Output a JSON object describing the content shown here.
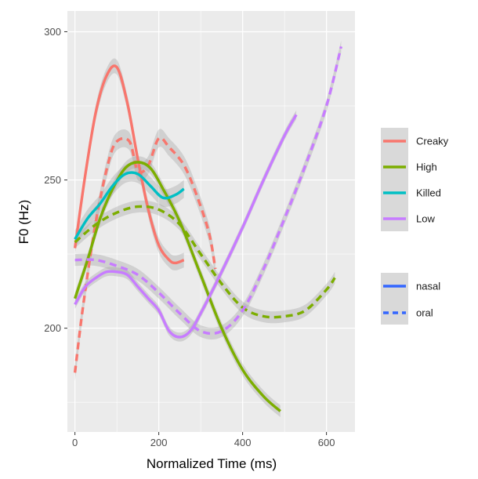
{
  "chart_data": {
    "type": "line",
    "xlabel": "Normalized Time (ms)",
    "ylabel": "F0 (Hz)",
    "xlim": [
      -18,
      668
    ],
    "ylim": [
      165,
      307
    ],
    "x_ticks": [
      0,
      200,
      400,
      600
    ],
    "y_ticks": [
      200,
      250,
      300
    ],
    "grid": true,
    "background": "#ebebeb",
    "legend_position": "right",
    "color_legend": {
      "entries": [
        {
          "label": "Creaky",
          "color": "#f8766d"
        },
        {
          "label": "High",
          "color": "#7cae00"
        },
        {
          "label": "Killed",
          "color": "#00bfc4"
        },
        {
          "label": "Low",
          "color": "#c77cff"
        }
      ]
    },
    "linetype_legend": {
      "entries": [
        {
          "label": "nasal",
          "dash": "solid",
          "color": "#3366ff"
        },
        {
          "label": "oral",
          "dash": "dashed",
          "color": "#3366ff"
        }
      ]
    },
    "series": [
      {
        "group": "Creaky",
        "linetype": "nasal",
        "color": "#f8766d",
        "band": 2.5,
        "x": [
          0,
          25,
          50,
          75,
          100,
          125,
          150,
          175,
          200,
          225,
          240,
          260
        ],
        "y": [
          227,
          252,
          273,
          285,
          288,
          276,
          257,
          240,
          228,
          223,
          222,
          223
        ]
      },
      {
        "group": "Creaky",
        "linetype": "oral",
        "color": "#f8766d",
        "band": 3,
        "x": [
          0,
          20,
          50,
          80,
          100,
          130,
          150,
          175,
          200,
          225,
          260,
          290,
          320,
          335
        ],
        "y": [
          185,
          208,
          236,
          256,
          263,
          263,
          253,
          255,
          264,
          261,
          255,
          245,
          232,
          220
        ]
      },
      {
        "group": "High",
        "linetype": "nasal",
        "color": "#7cae00",
        "band": 2,
        "x": [
          0,
          30,
          60,
          90,
          120,
          150,
          180,
          210,
          250,
          300,
          350,
          400,
          450,
          490
        ],
        "y": [
          210,
          223,
          237,
          247,
          254,
          256,
          254,
          247,
          236,
          218,
          200,
          186,
          177,
          172
        ]
      },
      {
        "group": "High",
        "linetype": "oral",
        "color": "#7cae00",
        "band": 2,
        "x": [
          0,
          50,
          100,
          150,
          200,
          250,
          300,
          350,
          400,
          450,
          500,
          550,
          600,
          620
        ],
        "y": [
          229,
          235,
          239,
          241,
          240,
          235,
          225,
          215,
          207,
          204,
          204,
          206,
          213,
          217
        ]
      },
      {
        "group": "Killed",
        "linetype": "nasal",
        "color": "#00bfc4",
        "band": 3,
        "x": [
          0,
          30,
          60,
          90,
          120,
          150,
          180,
          210,
          240,
          260
        ],
        "y": [
          230,
          237,
          242,
          248,
          252,
          252,
          248,
          244,
          245,
          247
        ]
      },
      {
        "group": "Low",
        "linetype": "nasal",
        "color": "#c77cff",
        "band": 1.5,
        "x": [
          0,
          25,
          50,
          75,
          100,
          125,
          150,
          175,
          200,
          225,
          250,
          275,
          300,
          350,
          400,
          450,
          500,
          528
        ],
        "y": [
          208,
          214,
          217,
          219,
          219,
          218,
          214,
          210,
          206,
          199,
          197,
          199,
          205,
          219,
          234,
          250,
          265,
          272
        ]
      },
      {
        "group": "Low",
        "linetype": "oral",
        "color": "#c77cff",
        "band": 2,
        "x": [
          0,
          50,
          100,
          150,
          200,
          250,
          300,
          350,
          400,
          450,
          500,
          550,
          600,
          635
        ],
        "y": [
          223,
          223,
          221,
          218,
          212,
          205,
          199,
          199,
          206,
          220,
          237,
          255,
          275,
          295
        ]
      }
    ]
  }
}
